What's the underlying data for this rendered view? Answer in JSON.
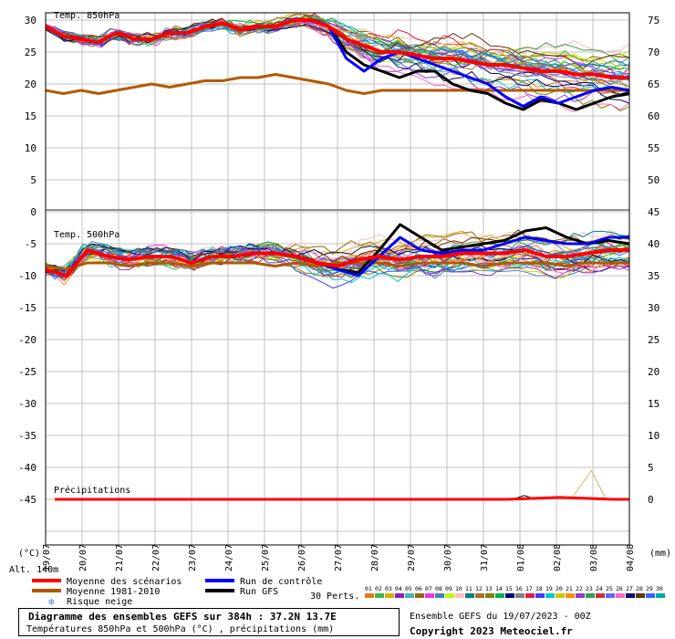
{
  "chart_data": [
    {
      "type": "line",
      "title": "Temp. 850hPa",
      "ylabel_left": "(°C)",
      "yticks_left": [
        0,
        5,
        10,
        15,
        20,
        25,
        30
      ],
      "yticks_right": [
        45,
        50,
        55,
        60,
        65,
        70,
        75
      ],
      "series": [
        {
          "name": "Moyenne des scénarios",
          "color": "#ff0000",
          "values": [
            29,
            27.5,
            27,
            26.5,
            28,
            27,
            27,
            28,
            28,
            29,
            29.5,
            28.5,
            29,
            29,
            30,
            30,
            29,
            27,
            26,
            25,
            25,
            24.5,
            24,
            24,
            23.5,
            23,
            23,
            22.5,
            22,
            22,
            21.5,
            21.5,
            21,
            21
          ]
        },
        {
          "name": "Moyenne 1981-2010",
          "color": "#b35900",
          "values": [
            19,
            18.5,
            19,
            18.5,
            19,
            19.5,
            20,
            19.5,
            20,
            20.5,
            20.5,
            21,
            21,
            21.5,
            21,
            20.5,
            20,
            19,
            18.5,
            19,
            19,
            19,
            19,
            19,
            19,
            19,
            19,
            19,
            19,
            19,
            19,
            19,
            19,
            19
          ]
        },
        {
          "name": "Run de contrôle",
          "color": "#0000ff",
          "values": [
            29,
            27.5,
            27,
            26.5,
            28,
            27,
            27,
            28,
            28,
            29,
            29.5,
            28.5,
            29,
            29,
            30,
            30,
            29,
            24,
            22,
            24,
            25,
            24,
            23,
            22,
            21,
            20,
            18,
            16.5,
            18,
            17,
            18,
            19,
            19.5,
            19
          ]
        },
        {
          "name": "Run GFS",
          "color": "#000000",
          "values": [
            29,
            27.5,
            27,
            26.5,
            28,
            27,
            27,
            28,
            28,
            29,
            29.5,
            28.5,
            29,
            29,
            30,
            30,
            29,
            25,
            23,
            22,
            21,
            22,
            22,
            20,
            19,
            18.5,
            17,
            16,
            17.5,
            17,
            16,
            17,
            18,
            18.5
          ]
        }
      ]
    },
    {
      "type": "line",
      "title": "Temp. 500hPa",
      "yticks_left": [
        -5,
        -10,
        -15,
        -20,
        -25,
        -30,
        -35,
        -40,
        -45
      ],
      "yticks_right": [
        45,
        40,
        35,
        30,
        25,
        20,
        15,
        10,
        5,
        0
      ],
      "ylabel_right": "(mm)",
      "series": [
        {
          "name": "Moyenne des scénarios",
          "values": [
            -9,
            -10,
            -6,
            -7,
            -7.5,
            -7,
            -7,
            -8,
            -7,
            -7,
            -6.5,
            -6.5,
            -7,
            -8,
            -8.5,
            -7.5,
            -7,
            -7.5,
            -7,
            -7,
            -6.5,
            -6.5,
            -6.5,
            -6,
            -7,
            -7,
            -6.5,
            -6,
            -6
          ]
        },
        {
          "name": "Moyenne 1981-2010",
          "values": [
            -8.5,
            -9,
            -8,
            -8,
            -8.5,
            -8,
            -8,
            -8.5,
            -8,
            -8,
            -8,
            -8.5,
            -8,
            -8.5,
            -8,
            -8,
            -8,
            -8.5,
            -8,
            -8,
            -8,
            -8.5,
            -8,
            -8,
            -8,
            -8.5,
            -8,
            -8,
            -8
          ]
        },
        {
          "name": "Run de contrôle",
          "values": [
            -9,
            -10,
            -6,
            -7,
            -7.5,
            -7,
            -7,
            -8,
            -7,
            -7,
            -6.5,
            -6.5,
            -7,
            -8,
            -9,
            -10,
            -7,
            -4,
            -6,
            -6.5,
            -6,
            -6,
            -5,
            -4,
            -4.5,
            -5,
            -5,
            -4,
            -4
          ]
        },
        {
          "name": "Run GFS",
          "values": [
            -9,
            -10,
            -6,
            -7,
            -7.5,
            -7,
            -7,
            -8,
            -7,
            -7,
            -6.5,
            -6.5,
            -7,
            -8,
            -9,
            -9.5,
            -6,
            -2,
            -4,
            -6,
            -5.5,
            -5,
            -4.5,
            -3,
            -2.5,
            -4,
            -5,
            -4.5,
            -5
          ]
        }
      ]
    },
    {
      "type": "line",
      "title": "Précipitations",
      "unit": "mm",
      "series": [
        {
          "name": "Moyenne des scénarios",
          "values": [
            0,
            0,
            0,
            0,
            0,
            0,
            0,
            0,
            0,
            0,
            0,
            0,
            0,
            0,
            0,
            0,
            0,
            0,
            0,
            0,
            0,
            0,
            0,
            0,
            0,
            0,
            0,
            0.1,
            0.2,
            0.3,
            0.2,
            0.1,
            0,
            0
          ]
        }
      ],
      "spike_value": 4.5
    }
  ],
  "x_labels": [
    "19/07",
    "20/07",
    "21/07",
    "22/07",
    "23/07",
    "24/07",
    "25/07",
    "26/07",
    "27/07",
    "28/07",
    "29/07",
    "30/07",
    "31/07",
    "01/08",
    "02/08",
    "03/08",
    "04/08"
  ],
  "left_unit": "(°C)",
  "right_unit": "(mm)",
  "altitude": "Alt. 140m",
  "legend": {
    "items": [
      {
        "label": "Moyenne des scénarios",
        "color": "#ff0000"
      },
      {
        "label": "Run de contrôle",
        "color": "#0000ff"
      },
      {
        "label": "Moyenne 1981-2010",
        "color": "#b35900"
      },
      {
        "label": "Run GFS",
        "color": "#000000"
      }
    ],
    "snow_label": "Risque neige",
    "perts_label": "30 Perts.",
    "pert_numbers": [
      "01",
      "02",
      "03",
      "04",
      "05",
      "06",
      "07",
      "08",
      "09",
      "10",
      "11",
      "12",
      "13",
      "14",
      "15",
      "16",
      "17",
      "18",
      "19",
      "20",
      "21",
      "22",
      "23",
      "24",
      "25",
      "26",
      "27",
      "28",
      "29",
      "30"
    ],
    "pert_colors": [
      "#e6781e",
      "#3cb44b",
      "#d2b400",
      "#911eb4",
      "#46b4b4",
      "#9b6400",
      "#f032e6",
      "#4682b4",
      "#bcf60c",
      "#fabebe",
      "#008080",
      "#aa6e28",
      "#808000",
      "#00b050",
      "#000075",
      "#808080",
      "#e6194b",
      "#3c3cff",
      "#00c8c8",
      "#c8c800",
      "#ff8c00",
      "#8c3cc8",
      "#32a050",
      "#c83232",
      "#6464ff",
      "#ff64c8",
      "#0a0a64",
      "#643200",
      "#3264ff",
      "#00aaaa"
    ]
  },
  "footer": {
    "title": "Diagramme des ensembles GEFS sur 384h : 37.2N 13.7E",
    "subtitle": "Températures 850hPa et 500hPa (°C) , précipitations (mm)",
    "ensemble_info": "Ensemble GEFS du 19/07/2023 - 00Z",
    "copyright": "Copyright 2023 Meteociel.fr"
  }
}
